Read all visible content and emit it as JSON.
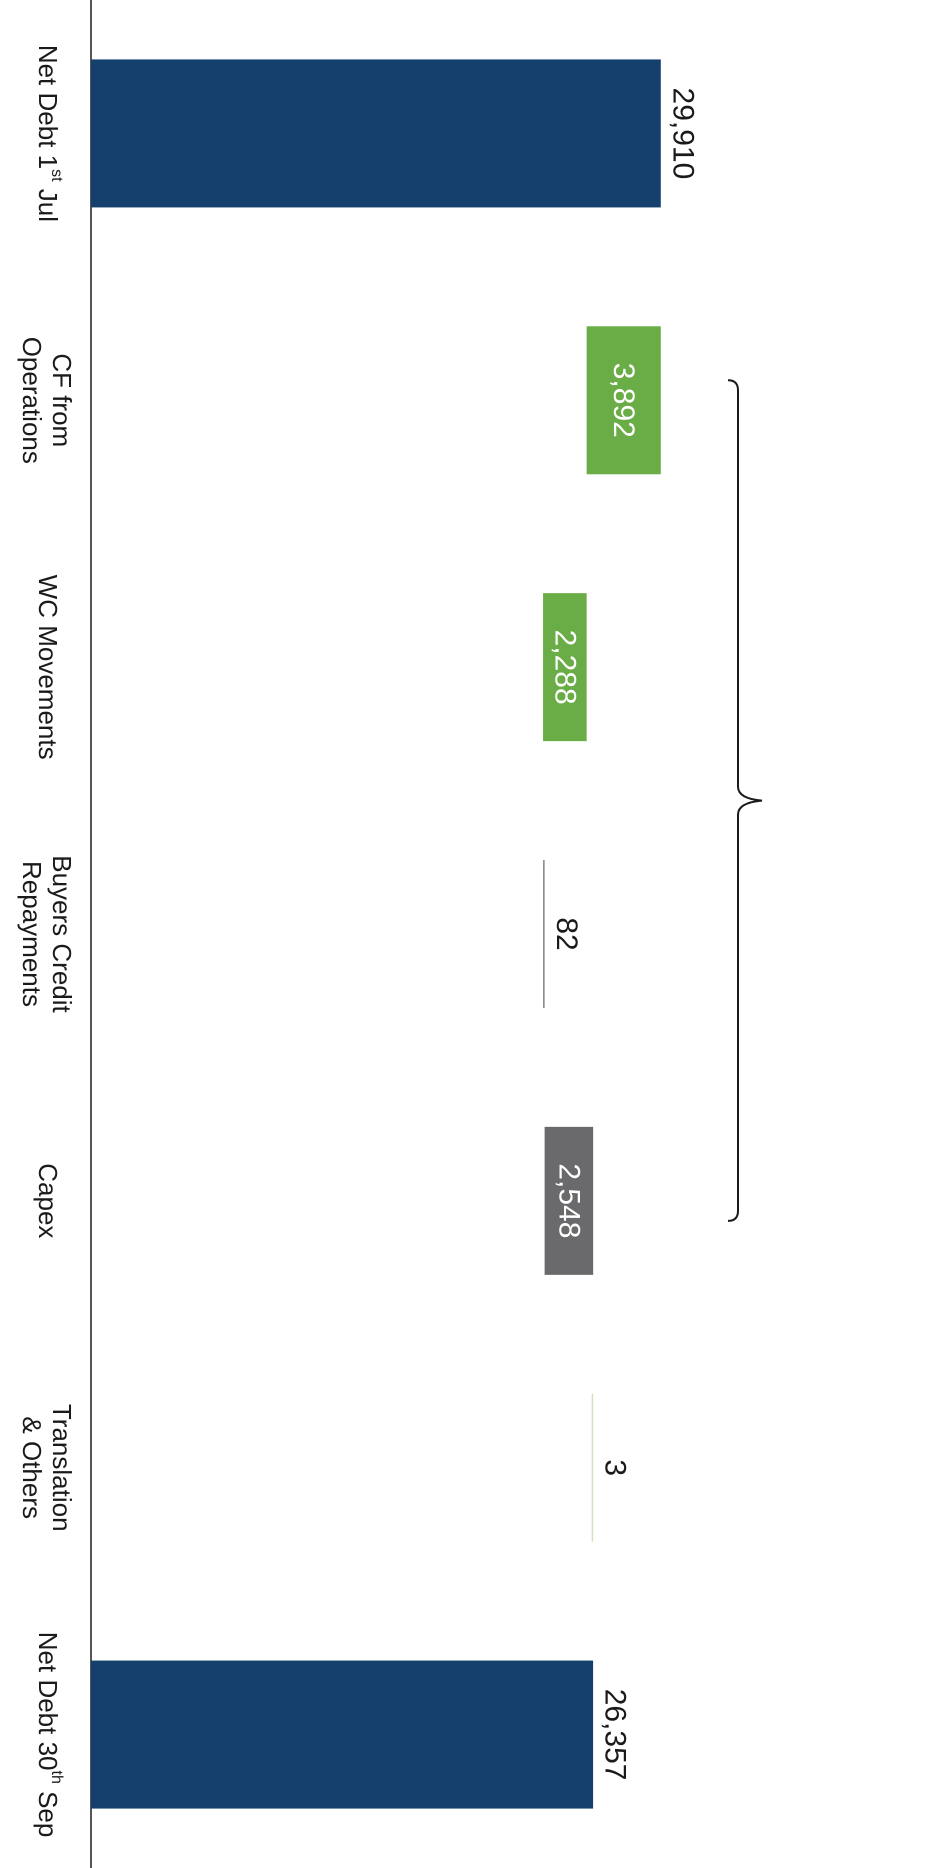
{
  "chart_data": {
    "type": "bar",
    "subtype": "waterfall",
    "orientation": "horizontal",
    "categories": [
      {
        "lines": [
          "Net Debt 1st Jul"
        ]
      },
      {
        "lines": [
          "CF from",
          "Operations"
        ]
      },
      {
        "lines": [
          "WC Movements"
        ]
      },
      {
        "lines": [
          "Buyers Credit",
          "Repayments"
        ]
      },
      {
        "lines": [
          "Capex"
        ]
      },
      {
        "lines": [
          "Translation",
          "& Others"
        ]
      },
      {
        "lines": [
          "Net Debt 30th Sep"
        ]
      }
    ],
    "bars": [
      {
        "start": 0,
        "end": 29910,
        "label": "29,910",
        "kind": "total"
      },
      {
        "start": 26018,
        "end": 29910,
        "label": "3,892",
        "kind": "decrease"
      },
      {
        "start": 23730,
        "end": 26018,
        "label": "2,288",
        "kind": "decrease"
      },
      {
        "start": 23730,
        "end": 23812,
        "label": "82",
        "kind": "increase"
      },
      {
        "start": 23812,
        "end": 26360,
        "label": "2,548",
        "kind": "increase"
      },
      {
        "start": 26357,
        "end": 26360,
        "label": "3",
        "kind": "decrease"
      },
      {
        "start": 0,
        "end": 26357,
        "label": "26,357",
        "kind": "total"
      }
    ],
    "colors": {
      "total": "#15406d",
      "decrease": "#6aac45",
      "increase": "#6a6a6c",
      "thin_increase": "#888888",
      "thin_decrease": "#cfe3c0",
      "axis": "#555555",
      "label_dark": "#1a1a1a",
      "label_light": "#ffffff"
    },
    "bracket": {
      "from_category": 1,
      "to_category": 4
    },
    "grid": false,
    "legend": "none",
    "title": "",
    "xlabel": "",
    "ylabel": ""
  }
}
